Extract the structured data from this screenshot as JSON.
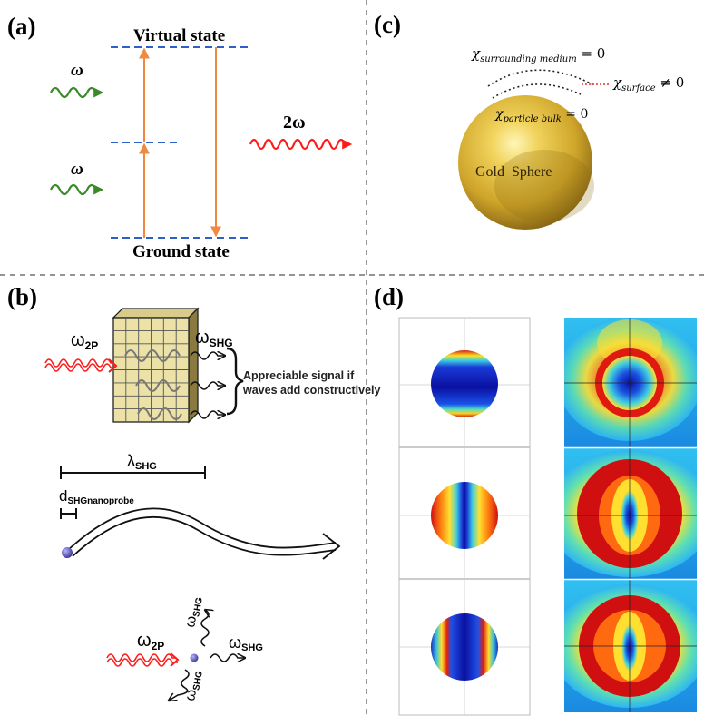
{
  "panels": {
    "a": {
      "label": "(a)",
      "virtual_state": "Virtual state",
      "ground_state": "Ground state",
      "omega_top": "ω",
      "omega_bottom": "ω",
      "two_omega": "2ω"
    },
    "b": {
      "label": "(b)",
      "omega_2p_top": "ω",
      "sub_2p_top": "2P",
      "omega_shg_top": "ω",
      "sub_shg_top": "SHG",
      "signal_line1": "Appreciable signal if",
      "signal_line2": "waves add constructively",
      "lambda": "λ",
      "lambda_sub": "SHG",
      "d_main": "d",
      "d_sub": "SHGnanoprobe",
      "omega_2p_bottom": "ω",
      "sub_2p_bottom": "2P",
      "omega_shg_up": "ω",
      "sub_shg_up": "SHG",
      "omega_shg_right": "ω",
      "sub_shg_right": "SHG",
      "omega_shg_down": "ω",
      "sub_shg_down": "SHG"
    },
    "c": {
      "label": "(c)",
      "chi_symbol": "χ",
      "sub_medium": "surrounding medium",
      "eq_medium": " = 0",
      "sub_surface": "surface",
      "eq_surface": " ≠ 0",
      "sub_bulk": "particle bulk",
      "eq_bulk": " = 0",
      "sphere_label": "Gold  Sphere"
    },
    "d": {
      "label": "(d)"
    }
  },
  "colors": {
    "dashed_level": "#2f5fc8",
    "arrow_orange": "#f08a40",
    "green_wave": "#3a8a2a",
    "red_wave": "#ff1a1a",
    "gold": "#d9b53a",
    "divider": "#555555"
  }
}
